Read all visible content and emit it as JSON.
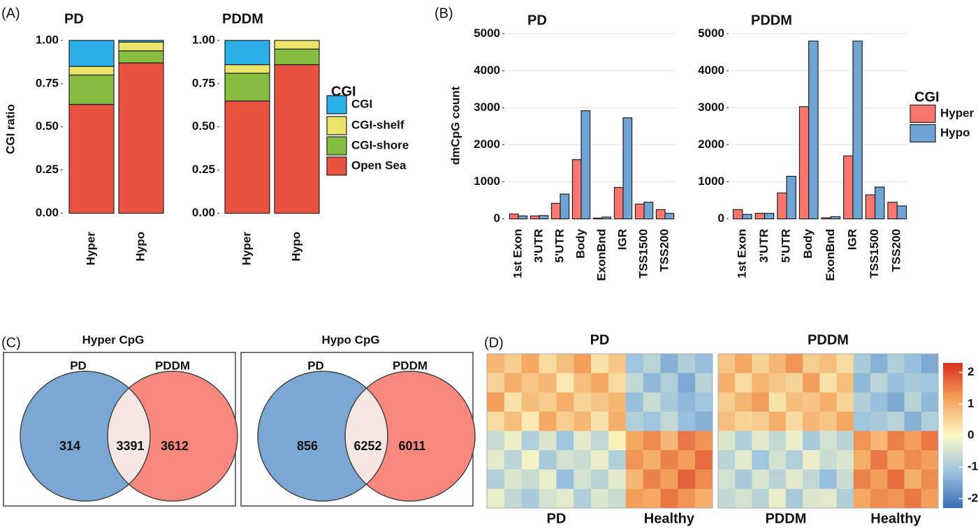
{
  "chart_data": [
    {
      "panel_label": "(A)",
      "type": "stacked_bar",
      "ylabel": "CGI ratio",
      "legend_title": "CGI",
      "categories": [
        "Hyper",
        "Hypo"
      ],
      "ylim": [
        -0.05,
        1.04
      ],
      "yticks": [
        {
          "value": 0,
          "label": "0.00"
        },
        {
          "value": 0.25,
          "label": "0.25"
        },
        {
          "value": 0.5,
          "label": "0.50"
        },
        {
          "value": 0.75,
          "label": "0.75"
        },
        {
          "value": 1,
          "label": "1.00"
        }
      ],
      "series": [
        {
          "name": "CGI",
          "color": "#2bafe8"
        },
        {
          "name": "CGI-shelf",
          "color": "#ece36a"
        },
        {
          "name": "CGI-shore",
          "color": "#86bd41"
        },
        {
          "name": "Open Sea",
          "color": "#e8523f"
        }
      ],
      "facets": [
        {
          "title": "PD",
          "values": [
            [
              0.15,
              0.01
            ],
            [
              0.05,
              0.05
            ],
            [
              0.17,
              0.07
            ],
            [
              0.63,
              0.87
            ]
          ]
        },
        {
          "title": "PDDM",
          "values": [
            [
              0.14,
              0
            ],
            [
              0.05,
              0.05
            ],
            [
              0.16,
              0.09
            ],
            [
              0.65,
              0.86
            ]
          ]
        }
      ]
    },
    {
      "panel_label": "(B)",
      "type": "grouped_bar",
      "ylabel": "dmCpG count",
      "legend_title": "CGI",
      "categories": [
        "1st Exon",
        "3'UTR",
        "5'UTR",
        "Body",
        "ExonBnd",
        "IGR",
        "TSS1500",
        "TSS200"
      ],
      "ylim": [
        -120,
        5250
      ],
      "yticks": [
        0,
        1000,
        2000,
        3000,
        4000,
        5000
      ],
      "grid": true,
      "series": [
        {
          "name": "Hyper",
          "color": "#f8766d"
        },
        {
          "name": "Hypo",
          "color": "#6fa3d4"
        }
      ],
      "facets": [
        {
          "title": "PD",
          "values": [
            [
              130,
              80,
              420,
              1600,
              20,
              850,
              400,
              250
            ],
            [
              80,
              90,
              670,
              2920,
              50,
              2730,
              450,
              150
            ]
          ]
        },
        {
          "title": "PDDM",
          "values": [
            [
              250,
              150,
              700,
              3030,
              30,
              1700,
              650,
              450
            ],
            [
              120,
              150,
              1150,
              4800,
              60,
              4800,
              860,
              350
            ]
          ]
        }
      ]
    },
    {
      "panel_label": "(C)",
      "type": "venn",
      "sets": [
        "PD",
        "PDDM"
      ],
      "colors": [
        "#7ba7d4",
        "#f8887d",
        "#f6e6e3"
      ],
      "diagrams": [
        {
          "title": "Hyper CpG",
          "values": [
            314,
            3391,
            3612
          ]
        },
        {
          "title": "Hypo CpG",
          "values": [
            856,
            6252,
            6011
          ]
        }
      ]
    },
    {
      "panel_label": "(D)",
      "type": "heatmap",
      "clim": [
        -2.3,
        2.3
      ],
      "colorbar_ticks": [
        2,
        1,
        0,
        -1,
        -2
      ],
      "colors": [
        "#3b6db3",
        "#9cc3df",
        "#fbf8c4",
        "#f4a45e",
        "#d7301f"
      ],
      "heatmaps": [
        {
          "title": "PD",
          "groups": [
            {
              "label": "PD",
              "values": [
                [
                  0.9,
                  0.6,
                  1.1,
                  0.4,
                  0.8,
                  1.2,
                  0.3,
                  0.7
                ],
                [
                  0.5,
                  1.0,
                  0.7,
                  0.9,
                  0.2,
                  0.8,
                  1.1,
                  0.4
                ],
                [
                  1.2,
                  0.3,
                  0.8,
                  0.6,
                  1.0,
                  0.5,
                  0.7,
                  0.9
                ],
                [
                  0.4,
                  0.8,
                  0.2,
                  1.1,
                  0.6,
                  0.9,
                  0.3,
                  1.0
                ],
                [
                  -0.6,
                  -0.2,
                  -0.9,
                  -0.4,
                  -1.1,
                  -0.3,
                  -0.7,
                  0.1
                ],
                [
                  -0.3,
                  -0.8,
                  -0.1,
                  -1.0,
                  -0.5,
                  -0.6,
                  -0.2,
                  -0.9
                ],
                [
                  -0.9,
                  -0.4,
                  -0.6,
                  -0.2,
                  -1.2,
                  -0.5,
                  -0.8,
                  -0.3
                ],
                [
                  -0.2,
                  -0.7,
                  -1.0,
                  -0.5,
                  -0.3,
                  -0.9,
                  -0.4,
                  -0.6
                ]
              ]
            },
            {
              "label": "Healthy",
              "values": [
                [
                  -1.1,
                  -0.8,
                  -1.4,
                  -0.9,
                  -1.2
                ],
                [
                  -0.7,
                  -1.3,
                  -0.9,
                  -1.5,
                  -0.8
                ],
                [
                  -1.2,
                  -0.6,
                  -1.0,
                  -1.3,
                  -1.1
                ],
                [
                  -0.9,
                  -1.1,
                  -0.7,
                  -1.2,
                  -1.4
                ],
                [
                  1.1,
                  1.4,
                  0.9,
                  1.6,
                  1.3
                ],
                [
                  1.3,
                  1.0,
                  1.5,
                  1.2,
                  1.7
                ],
                [
                  0.9,
                  1.5,
                  1.2,
                  1.8,
                  1.4
                ],
                [
                  1.2,
                  1.1,
                  1.6,
                  1.3,
                  1.0
                ]
              ]
            }
          ]
        },
        {
          "title": "PDDM",
          "groups": [
            {
              "label": "PDDM",
              "values": [
                [
                  0.7,
                  1.1,
                  0.5,
                  0.9,
                  1.3,
                  0.6,
                  0.8,
                  0.4
                ],
                [
                  1.0,
                  0.4,
                  0.9,
                  0.7,
                  0.5,
                  1.2,
                  0.3,
                  0.8
                ],
                [
                  0.6,
                  0.9,
                  1.2,
                  0.3,
                  0.8,
                  0.7,
                  1.0,
                  0.5
                ],
                [
                  0.8,
                  0.5,
                  0.6,
                  1.0,
                  0.4,
                  0.9,
                  0.7,
                  1.1
                ],
                [
                  -0.4,
                  -0.9,
                  -0.3,
                  -0.7,
                  -0.2,
                  -1.0,
                  -0.5,
                  -0.8
                ],
                [
                  -0.8,
                  -0.3,
                  -1.1,
                  -0.5,
                  -0.9,
                  -0.2,
                  -0.6,
                  -0.4
                ],
                [
                  -0.5,
                  -1.0,
                  -0.4,
                  -0.8,
                  -0.3,
                  -0.7,
                  -1.2,
                  -0.6
                ],
                [
                  -0.7,
                  -0.5,
                  -0.8,
                  -0.2,
                  -1.0,
                  -0.4,
                  -0.3,
                  -0.9
                ]
              ]
            },
            {
              "label": "Healthy",
              "values": [
                [
                  -1.0,
                  -1.4,
                  -0.9,
                  -1.2,
                  -1.5
                ],
                [
                  -1.3,
                  -0.8,
                  -1.2,
                  -1.0,
                  -1.1
                ],
                [
                  -0.9,
                  -1.2,
                  -1.5,
                  -0.8,
                  -1.3
                ],
                [
                  -1.1,
                  -1.0,
                  -0.8,
                  -1.4,
                  -0.9
                ],
                [
                  1.3,
                  0.9,
                  1.5,
                  1.2,
                  1.6
                ],
                [
                  1.0,
                  1.6,
                  1.1,
                  1.4,
                  1.2
                ],
                [
                  1.5,
                  1.2,
                  1.7,
                  1.0,
                  1.4
                ],
                [
                  1.1,
                  1.4,
                  1.3,
                  1.6,
                  1.2
                ]
              ]
            }
          ]
        }
      ]
    }
  ]
}
